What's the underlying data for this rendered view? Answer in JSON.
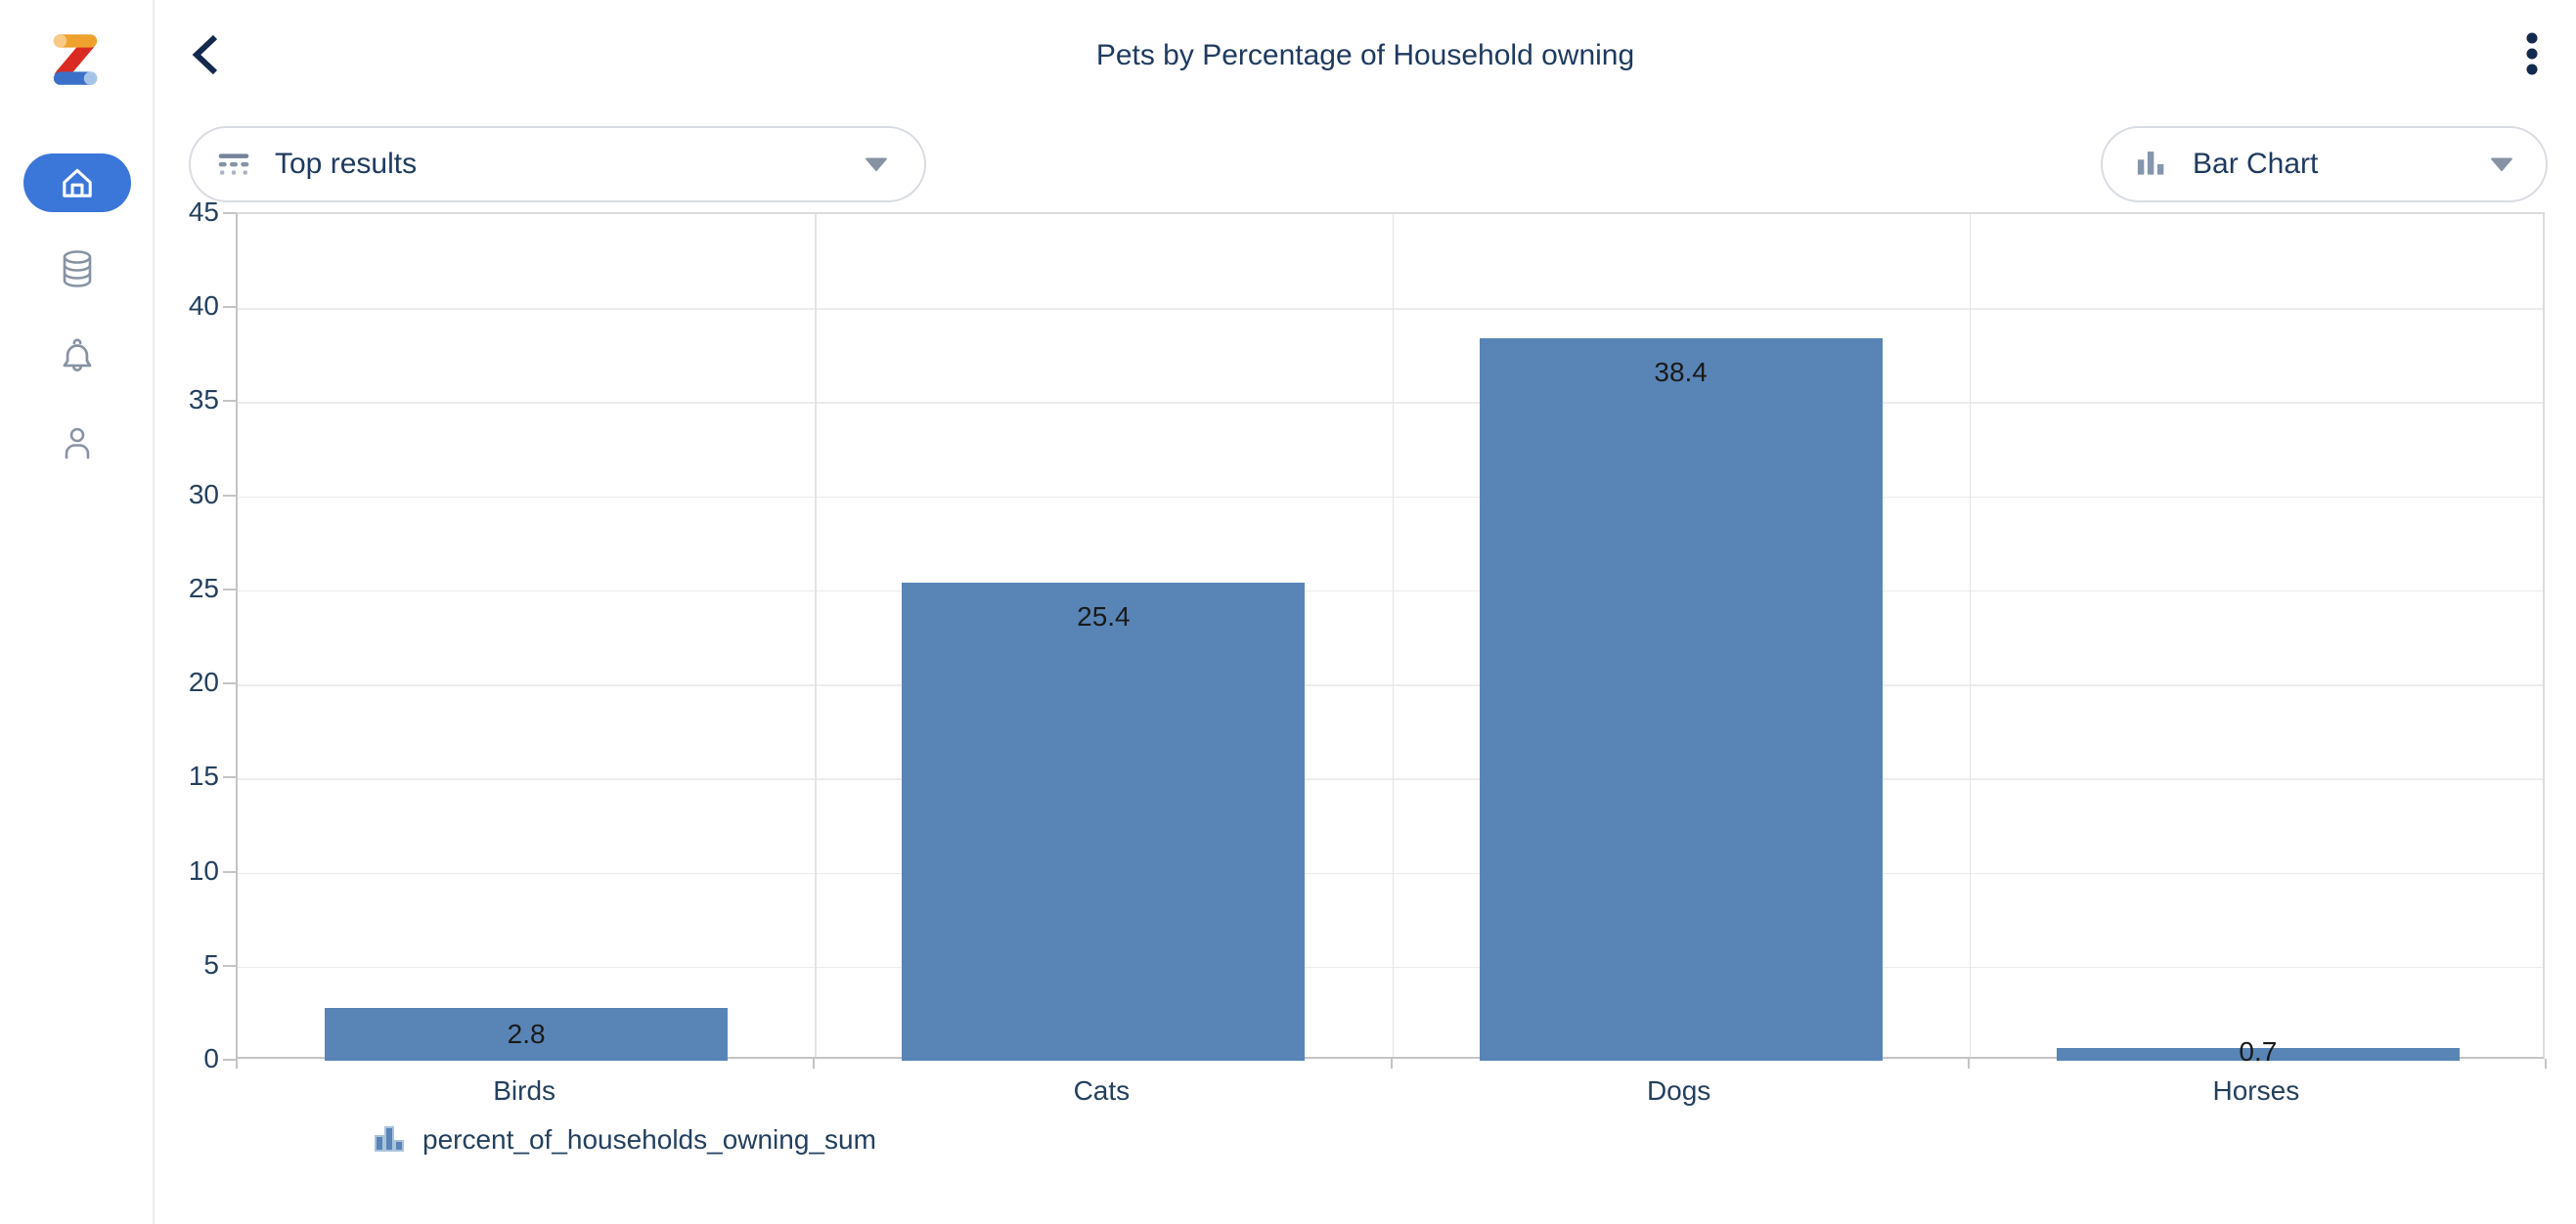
{
  "app": {
    "title": "Pets by Percentage of Household owning"
  },
  "sidebar": {
    "logo": "zoho-z-logo",
    "items": [
      {
        "name": "home",
        "active": true
      },
      {
        "name": "data",
        "active": false
      },
      {
        "name": "notifications",
        "active": false
      },
      {
        "name": "profile",
        "active": false
      }
    ]
  },
  "header": {
    "back_icon": "chevron-left-icon",
    "menu_icon": "kebab-menu-icon"
  },
  "controls": {
    "top_results": {
      "label": "Top results",
      "icon": "top-results-icon",
      "caret": "caret-down-icon"
    },
    "chart_type": {
      "label": "Bar Chart",
      "icon": "bar-chart-icon",
      "caret": "caret-down-icon"
    }
  },
  "colors": {
    "bar": "#5885b6",
    "active_item": "#3b76d9",
    "navy_text": "#1e3a5f",
    "icon_gray": "#8793a3",
    "gridline": "#ececec",
    "axis": "#c4c4c4"
  },
  "chart_data": {
    "type": "bar",
    "categories": [
      "Birds",
      "Cats",
      "Dogs",
      "Horses"
    ],
    "values": [
      2.8,
      25.4,
      38.4,
      0.7
    ],
    "value_labels": [
      "2.8",
      "25.4",
      "38.4",
      "0.7"
    ],
    "series_name": "percent_of_households_owning_sum",
    "title": "Pets by Percentage of Household owning",
    "xlabel": "",
    "ylabel": "",
    "ylim": [
      0,
      45
    ],
    "ytick_step": 5,
    "yticks": [
      0,
      5,
      10,
      15,
      20,
      25,
      30,
      35,
      40,
      45
    ],
    "grid": true,
    "legend_position": "bottom-left"
  }
}
